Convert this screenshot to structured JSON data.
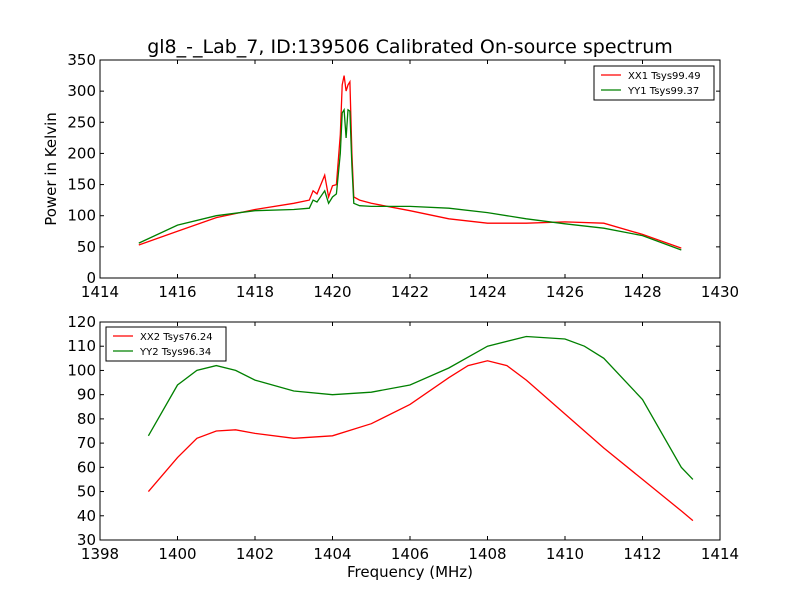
{
  "chart_data": [
    {
      "type": "line",
      "title": "gl8_-_Lab_7, ID:139506 Calibrated On-source spectrum",
      "xlabel": "",
      "ylabel": "Power in Kelvin",
      "xlim": [
        1414,
        1430
      ],
      "ylim": [
        0,
        350
      ],
      "xticks": [
        "1414",
        "1416",
        "1418",
        "1420",
        "1422",
        "1424",
        "1426",
        "1428",
        "1430"
      ],
      "yticks": [
        "0",
        "50",
        "100",
        "150",
        "200",
        "250",
        "300",
        "350"
      ],
      "legend_position": "top-right",
      "series": [
        {
          "name": "XX1 Tsys99.49",
          "color": "#ff0000",
          "x": [
            1415,
            1416,
            1417,
            1418,
            1419,
            1419.4,
            1419.5,
            1419.6,
            1419.8,
            1419.9,
            1420.0,
            1420.1,
            1420.2,
            1420.25,
            1420.3,
            1420.35,
            1420.4,
            1420.45,
            1420.5,
            1420.55,
            1420.7,
            1421,
            1422,
            1423,
            1424,
            1425,
            1426,
            1427,
            1428,
            1429
          ],
          "y": [
            53,
            75,
            97,
            110,
            120,
            125,
            140,
            135,
            165,
            130,
            148,
            150,
            230,
            310,
            325,
            300,
            310,
            315,
            200,
            130,
            125,
            120,
            108,
            95,
            88,
            88,
            90,
            88,
            70,
            48
          ]
        },
        {
          "name": "YY1 Tsys99.37",
          "color": "#008000",
          "x": [
            1415,
            1416,
            1417,
            1418,
            1419,
            1419.4,
            1419.5,
            1419.6,
            1419.8,
            1419.9,
            1420.0,
            1420.1,
            1420.2,
            1420.25,
            1420.3,
            1420.35,
            1420.4,
            1420.45,
            1420.5,
            1420.55,
            1420.7,
            1421,
            1422,
            1423,
            1424,
            1425,
            1426,
            1427,
            1428,
            1429
          ],
          "y": [
            56,
            85,
            100,
            108,
            110,
            112,
            125,
            122,
            140,
            120,
            130,
            135,
            200,
            265,
            270,
            225,
            270,
            268,
            180,
            120,
            116,
            115,
            115,
            112,
            105,
            95,
            87,
            80,
            68,
            45
          ]
        }
      ]
    },
    {
      "type": "line",
      "title": "",
      "xlabel": "Frequency (MHz)",
      "ylabel": "",
      "xlim": [
        1398,
        1414
      ],
      "ylim": [
        30,
        120
      ],
      "xticks": [
        "1398",
        "1400",
        "1402",
        "1404",
        "1406",
        "1408",
        "1410",
        "1412",
        "1414"
      ],
      "yticks": [
        "30",
        "40",
        "50",
        "60",
        "70",
        "80",
        "90",
        "100",
        "110",
        "120"
      ],
      "legend_position": "top-left",
      "series": [
        {
          "name": "XX2 Tsys76.24",
          "color": "#ff0000",
          "x": [
            1399.25,
            1400,
            1400.5,
            1401,
            1401.5,
            1402,
            1403,
            1404,
            1405,
            1406,
            1407,
            1407.5,
            1408,
            1408.5,
            1409,
            1410,
            1411,
            1412,
            1413,
            1413.3
          ],
          "y": [
            50,
            64,
            72,
            75,
            75.5,
            74,
            72,
            73,
            78,
            86,
            97,
            102,
            104,
            102,
            96,
            82,
            68,
            55,
            42,
            38
          ]
        },
        {
          "name": "YY2 Tsys96.34",
          "color": "#008000",
          "x": [
            1399.25,
            1400,
            1400.5,
            1401,
            1401.5,
            1402,
            1403,
            1404,
            1405,
            1406,
            1407,
            1408,
            1409,
            1410,
            1410.5,
            1411,
            1412,
            1413,
            1413.3
          ],
          "y": [
            73,
            94,
            100,
            102,
            100,
            96,
            91.5,
            90,
            91,
            94,
            101,
            110,
            114,
            113,
            110,
            105,
            88,
            60,
            55
          ]
        }
      ]
    }
  ]
}
